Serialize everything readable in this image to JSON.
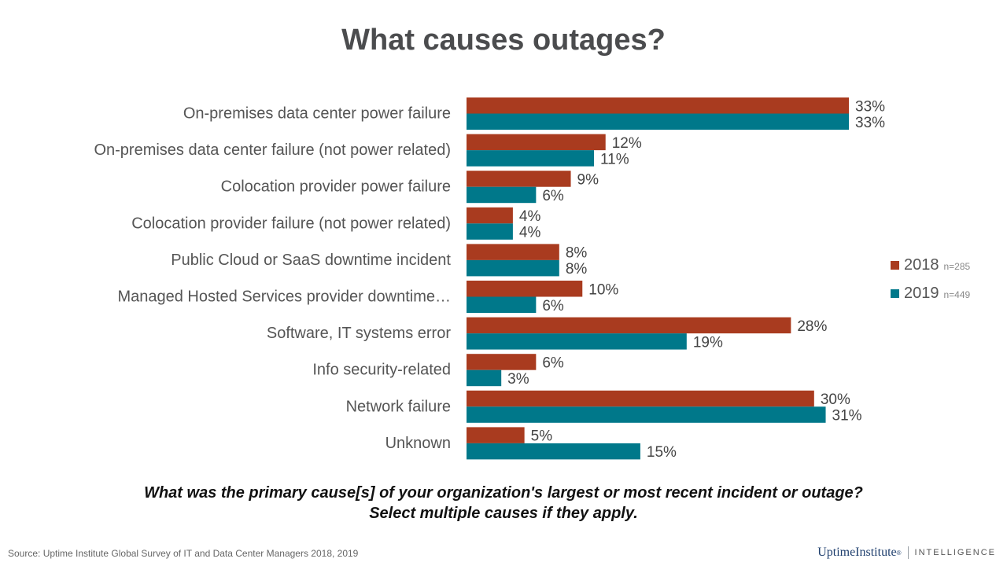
{
  "title": "What causes outages?",
  "question": {
    "line1": "What was the primary cause[s] of your organization's largest or most recent incident or outage?",
    "line2": "Select multiple causes if they apply."
  },
  "source": "Source: Uptime Institute Global Survey of IT and Data Center Managers 2018, 2019",
  "logo": {
    "brand": "UptimeInstitute",
    "mark": "®",
    "sub": "INTELLIGENCE"
  },
  "legend": [
    {
      "year": "2018",
      "n": "n=285",
      "color": "#a93b1f"
    },
    {
      "year": "2019",
      "n": "n=449",
      "color": "#00788a"
    }
  ],
  "chart_data": {
    "type": "bar",
    "orientation": "horizontal",
    "title": "What causes outages?",
    "xlabel": "",
    "ylabel": "",
    "xlim": [
      0,
      33
    ],
    "grid": false,
    "legend_position": "right",
    "value_suffix": "%",
    "categories": [
      "On-premises data center power failure",
      "On-premises data center failure (not power related)",
      "Colocation provider power failure",
      "Colocation provider failure (not power related)",
      "Public Cloud or SaaS downtime incident",
      "Managed Hosted Services provider downtime…",
      "Software, IT systems error",
      "Info security-related",
      "Network failure",
      "Unknown"
    ],
    "series": [
      {
        "name": "2018",
        "color": "#a93b1f",
        "values": [
          33,
          12,
          9,
          4,
          8,
          10,
          28,
          6,
          30,
          5
        ]
      },
      {
        "name": "2019",
        "color": "#00788a",
        "values": [
          33,
          11,
          6,
          4,
          8,
          6,
          19,
          3,
          31,
          15
        ]
      }
    ]
  }
}
